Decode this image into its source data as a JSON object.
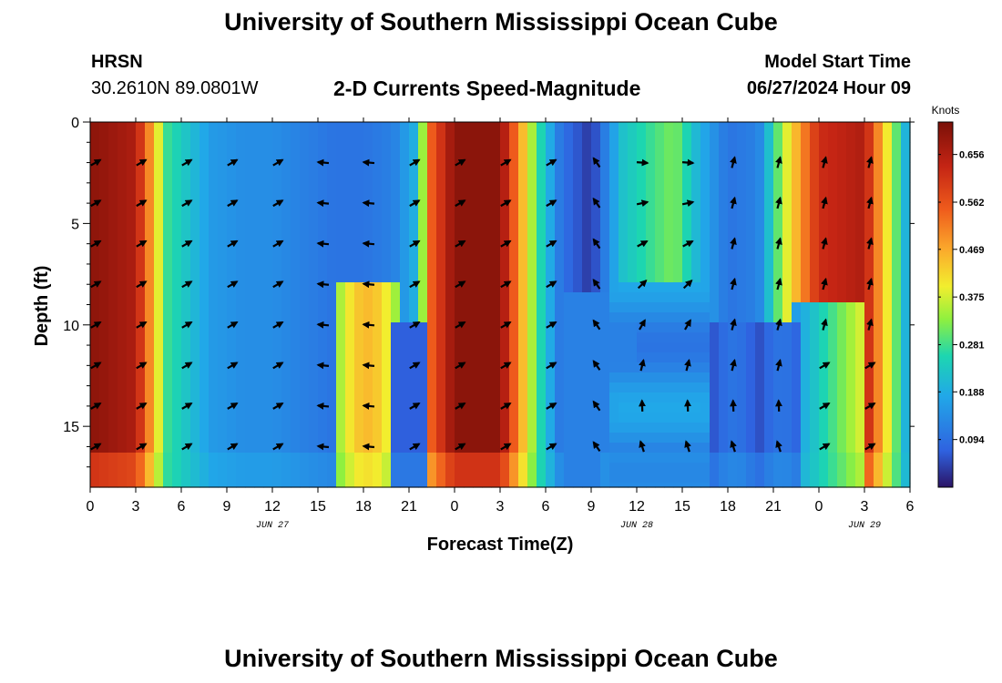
{
  "header": {
    "title": "University of Southern Mississippi Ocean Cube",
    "station_code": "HRSN",
    "station_coords": "30.2610N  89.0801W",
    "plot_title": "2-D Currents Speed-Magnitude",
    "model_start_label": "Model Start Time",
    "model_start_value": "06/27/2024 Hour 09"
  },
  "footer": {
    "title": "University of Southern Mississippi Ocean Cube"
  },
  "chart_data": {
    "type": "heatmap",
    "title": "2-D Currents Speed-Magnitude",
    "xlabel": "Forecast Time(Z)",
    "ylabel": "Depth (ft)",
    "x_unit": "hours since 06/27 00Z",
    "xlim": [
      0,
      54
    ],
    "ylim": [
      0,
      18
    ],
    "y_inverted": true,
    "x_ticks": [
      {
        "h": 0,
        "label": "0"
      },
      {
        "h": 3,
        "label": "3"
      },
      {
        "h": 6,
        "label": "6"
      },
      {
        "h": 9,
        "label": "9"
      },
      {
        "h": 12,
        "label": "12"
      },
      {
        "h": 15,
        "label": "15"
      },
      {
        "h": 18,
        "label": "18"
      },
      {
        "h": 21,
        "label": "21"
      },
      {
        "h": 24,
        "label": "0"
      },
      {
        "h": 27,
        "label": "3"
      },
      {
        "h": 30,
        "label": "6"
      },
      {
        "h": 33,
        "label": "9"
      },
      {
        "h": 36,
        "label": "12"
      },
      {
        "h": 39,
        "label": "15"
      },
      {
        "h": 42,
        "label": "18"
      },
      {
        "h": 45,
        "label": "21"
      },
      {
        "h": 48,
        "label": "0"
      },
      {
        "h": 51,
        "label": "3"
      },
      {
        "h": 54,
        "label": "6"
      }
    ],
    "date_labels": [
      {
        "h": 12,
        "label": "JUN 27"
      },
      {
        "h": 36,
        "label": "JUN 28"
      },
      {
        "h": 51,
        "label": "JUN 29"
      }
    ],
    "y_ticks": [
      0,
      5,
      10,
      15
    ],
    "colorbar": {
      "title": "Knots",
      "min": 0.0,
      "max": 0.72,
      "ticks": [
        0.656,
        0.562,
        0.469,
        0.375,
        0.281,
        0.188,
        0.094
      ]
    },
    "vector_times": [
      0,
      3,
      6,
      9,
      12,
      15,
      18,
      21,
      24,
      27,
      30,
      33,
      36,
      39,
      42,
      45,
      48,
      51,
      54
    ],
    "vector_depths": [
      2,
      4,
      6,
      8,
      10,
      12,
      14,
      16
    ],
    "speed_profile_note": "speed (knots) by forecast hour, upper water column",
    "speed_by_hour": [
      [
        0,
        0.7
      ],
      [
        3,
        0.66
      ],
      [
        4.2,
        0.45
      ],
      [
        5,
        0.28
      ],
      [
        6.5,
        0.22
      ],
      [
        8,
        0.16
      ],
      [
        10,
        0.14
      ],
      [
        12,
        0.14
      ],
      [
        14,
        0.12
      ],
      [
        16,
        0.1
      ],
      [
        18,
        0.1
      ],
      [
        20,
        0.12
      ],
      [
        21.5,
        0.2
      ],
      [
        22.5,
        0.55
      ],
      [
        24,
        0.7
      ],
      [
        27,
        0.7
      ],
      [
        28.2,
        0.5
      ],
      [
        29.5,
        0.28
      ],
      [
        31,
        0.1
      ],
      [
        33,
        0.03
      ],
      [
        35,
        0.22
      ],
      [
        37,
        0.28
      ],
      [
        38.5,
        0.32
      ],
      [
        40,
        0.2
      ],
      [
        42,
        0.1
      ],
      [
        44,
        0.12
      ],
      [
        46,
        0.4
      ],
      [
        48,
        0.62
      ],
      [
        51,
        0.66
      ],
      [
        52.5,
        0.4
      ],
      [
        54,
        0.15
      ]
    ]
  }
}
